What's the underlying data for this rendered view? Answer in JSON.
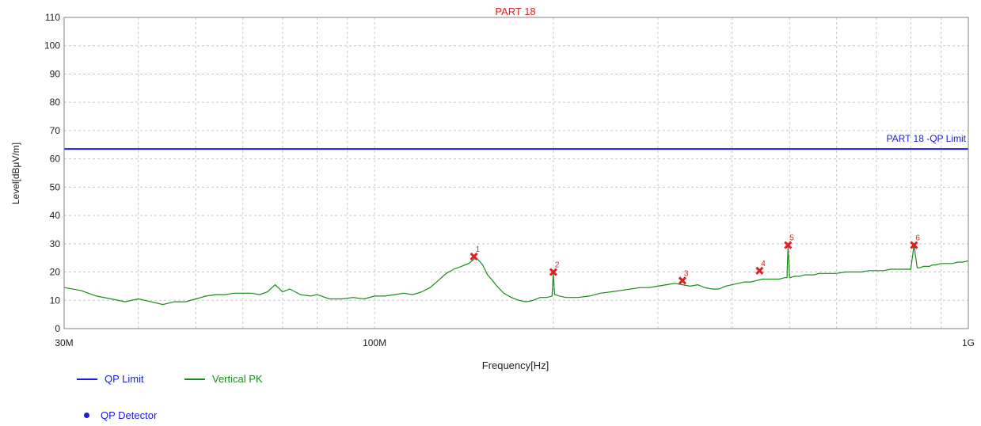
{
  "chart_data": {
    "type": "line",
    "title": "PART 18",
    "xlabel": "Frequency[Hz]",
    "ylabel": "Level[dBμV/m]",
    "x_scale": "log",
    "xlim": [
      30000000,
      1000000000
    ],
    "ylim": [
      0,
      110
    ],
    "grid": true,
    "yticks": [
      0,
      10,
      20,
      30,
      40,
      50,
      60,
      70,
      80,
      90,
      100,
      110
    ],
    "x_tick_labels": [
      {
        "value": 30000000,
        "label": "30M"
      },
      {
        "value": 100000000,
        "label": "100M"
      },
      {
        "value": 1000000000,
        "label": "1G"
      }
    ],
    "limit_line": {
      "name": "QP Limit",
      "label": "PART 18 -QP Limit",
      "value": 63.5,
      "color": "#1a1ae6"
    },
    "series": [
      {
        "name": "Vertical PK",
        "color": "#1a8a1a",
        "x": [
          30000000,
          32000000,
          34000000,
          36000000,
          38000000,
          40000000,
          42000000,
          44000000,
          46000000,
          48000000,
          50000000,
          52000000,
          54000000,
          56000000,
          58000000,
          60000000,
          62000000,
          64000000,
          66000000,
          68000000,
          70000000,
          72000000,
          75000000,
          78000000,
          80000000,
          84000000,
          88000000,
          92000000,
          96000000,
          100000000,
          104000000,
          108000000,
          112000000,
          116000000,
          120000000,
          124000000,
          128000000,
          132000000,
          136000000,
          140000000,
          144000000,
          148000000,
          150000000,
          152000000,
          155000000,
          158000000,
          160000000,
          165000000,
          170000000,
          175000000,
          180000000,
          185000000,
          190000000,
          195000000,
          199000000,
          200000000,
          201000000,
          205000000,
          210000000,
          220000000,
          230000000,
          240000000,
          250000000,
          260000000,
          270000000,
          280000000,
          290000000,
          300000000,
          310000000,
          320000000,
          330000000,
          340000000,
          350000000,
          360000000,
          370000000,
          380000000,
          390000000,
          400000000,
          410000000,
          420000000,
          430000000,
          440000000,
          450000000,
          460000000,
          470000000,
          480000000,
          490000000,
          495000000,
          497000000,
          500000000,
          510000000,
          520000000,
          530000000,
          540000000,
          550000000,
          560000000,
          580000000,
          600000000,
          620000000,
          640000000,
          660000000,
          680000000,
          700000000,
          720000000,
          740000000,
          760000000,
          780000000,
          800000000,
          810000000,
          820000000,
          830000000,
          840000000,
          850000000,
          860000000,
          870000000,
          880000000,
          900000000,
          920000000,
          940000000,
          960000000,
          980000000,
          1000000000
        ],
        "values": [
          14.5,
          13.5,
          11.5,
          10.5,
          9.5,
          10.5,
          9.5,
          8.5,
          9.5,
          9.5,
          10.5,
          11.5,
          12.0,
          12.0,
          12.5,
          12.5,
          12.5,
          12.0,
          13.0,
          15.5,
          13.0,
          14.0,
          12.0,
          11.5,
          12.0,
          10.5,
          10.5,
          11.0,
          10.5,
          11.5,
          11.5,
          12.0,
          12.5,
          12.0,
          13.0,
          14.5,
          17.0,
          19.5,
          21.0,
          22.0,
          23.0,
          25.0,
          24.0,
          22.5,
          19.0,
          17.0,
          15.5,
          12.5,
          11.0,
          10.0,
          9.5,
          10.0,
          11.0,
          11.0,
          11.5,
          19.5,
          12.0,
          11.5,
          11.0,
          11.0,
          11.5,
          12.5,
          13.0,
          13.5,
          14.0,
          14.5,
          14.5,
          15.0,
          15.5,
          16.0,
          15.5,
          15.0,
          15.5,
          14.5,
          14.0,
          14.0,
          15.0,
          15.5,
          16.0,
          16.5,
          16.5,
          17.0,
          17.5,
          17.5,
          17.5,
          17.5,
          18.0,
          18.0,
          29.0,
          18.0,
          18.5,
          18.5,
          19.0,
          19.0,
          19.0,
          19.5,
          19.5,
          19.5,
          20.0,
          20.0,
          20.0,
          20.5,
          20.5,
          20.5,
          21.0,
          21.0,
          21.0,
          21.0,
          29.5,
          21.5,
          21.5,
          22.0,
          22.0,
          22.0,
          22.5,
          22.5,
          23.0,
          23.0,
          23.0,
          23.5,
          23.5,
          24.0
        ]
      }
    ],
    "markers": [
      {
        "label": "1",
        "x": 147000000,
        "y": 25.5
      },
      {
        "label": "2",
        "x": 200000000,
        "y": 20.0
      },
      {
        "label": "3",
        "x": 330000000,
        "y": 17.0
      },
      {
        "label": "4",
        "x": 445000000,
        "y": 20.5
      },
      {
        "label": "5",
        "x": 497000000,
        "y": 29.5
      },
      {
        "label": "6",
        "x": 810000000,
        "y": 29.5
      }
    ],
    "legend": [
      {
        "name": "QP Limit",
        "color": "#1a1ae6",
        "kind": "line"
      },
      {
        "name": "Vertical PK",
        "color": "#1a8a1a",
        "kind": "line"
      },
      {
        "name": "QP Detector",
        "color": "#1a1ae6",
        "kind": "dot"
      }
    ],
    "legend_position": "bottom-left"
  }
}
